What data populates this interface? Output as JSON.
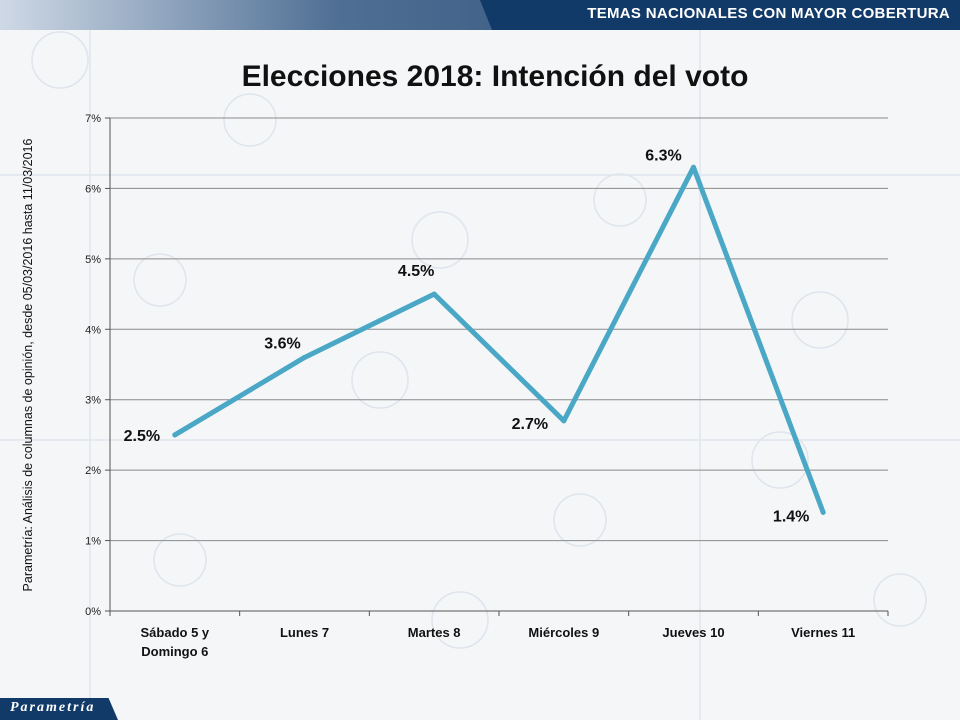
{
  "header": {
    "label": "TEMAS NACIONALES CON MAYOR COBERTURA"
  },
  "footer": {
    "logo": "Parametría"
  },
  "side_note": "Parametría: Análisis de columnas de opinión, desde 05/03/2016 hasta 11/03/2016",
  "colors": {
    "line": "#4aa8c6",
    "header": "#123a68"
  },
  "chart_data": {
    "type": "line",
    "title": "Elecciones 2018: Intención del voto",
    "categories": [
      "Sábado 5 y\nDomingo 6",
      "Lunes 7",
      "Martes 8",
      "Miércoles 9",
      "Jueves 10",
      "Viernes 11"
    ],
    "series": [
      {
        "values": [
          2.5,
          3.6,
          4.5,
          2.7,
          6.3,
          1.4
        ],
        "labels": [
          "2.5%",
          "3.6%",
          "4.5%",
          "2.7%",
          "6.3%",
          "1.4%"
        ]
      }
    ],
    "yticks": [
      "0%",
      "1%",
      "2%",
      "3%",
      "4%",
      "5%",
      "6%",
      "7%"
    ],
    "ylim": [
      0,
      7
    ],
    "grid": true,
    "legend": "none"
  }
}
